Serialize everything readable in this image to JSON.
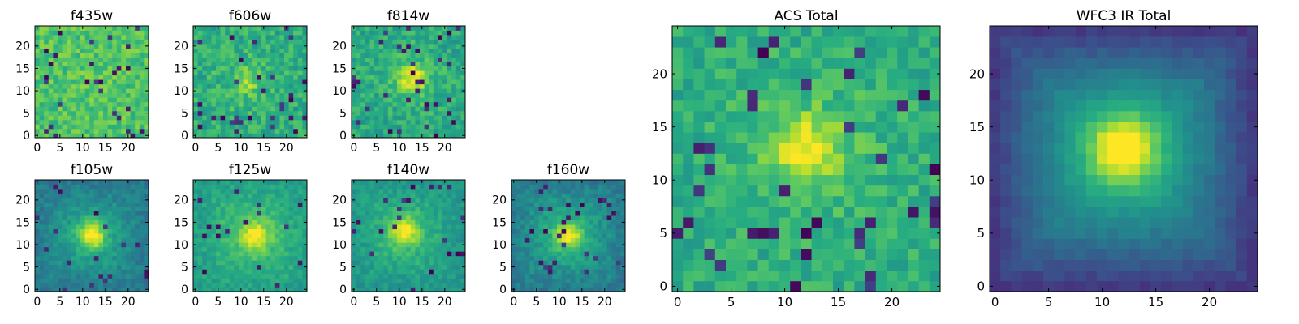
{
  "chart_data": [
    {
      "type": "heatmap",
      "title": "f435w",
      "xlim": [
        0,
        24
      ],
      "ylim": [
        0,
        24
      ],
      "xticks": [
        0,
        5,
        10,
        15,
        20
      ],
      "yticks": [
        0,
        5,
        10,
        15,
        20
      ],
      "peak": [
        12,
        12
      ],
      "core_strength": 0.0,
      "halo_strength": 0.02,
      "base": 0.72,
      "noise": 0.22,
      "dark_fraction": 0.06,
      "edge_darkening": 0.0
    },
    {
      "type": "heatmap",
      "title": "f606w",
      "xlim": [
        0,
        24
      ],
      "ylim": [
        0,
        24
      ],
      "xticks": [
        0,
        5,
        10,
        15,
        20
      ],
      "yticks": [
        0,
        5,
        10,
        15,
        20
      ],
      "peak": [
        11,
        12
      ],
      "core_strength": 0.18,
      "halo_strength": 0.06,
      "base": 0.62,
      "noise": 0.24,
      "dark_fraction": 0.05,
      "edge_darkening": 0.0
    },
    {
      "type": "heatmap",
      "title": "f814w",
      "xlim": [
        0,
        24
      ],
      "ylim": [
        0,
        24
      ],
      "xticks": [
        0,
        5,
        10,
        15,
        20
      ],
      "yticks": [
        0,
        5,
        10,
        15,
        20
      ],
      "peak": [
        13,
        13
      ],
      "core_strength": 0.32,
      "halo_strength": 0.1,
      "base": 0.6,
      "noise": 0.22,
      "dark_fraction": 0.05,
      "edge_darkening": 0.0
    },
    {
      "type": "heatmap",
      "title": "f105w",
      "xlim": [
        0,
        24
      ],
      "ylim": [
        0,
        24
      ],
      "xticks": [
        0,
        5,
        10,
        15,
        20
      ],
      "yticks": [
        0,
        5,
        10,
        15,
        20
      ],
      "peak": [
        12,
        12
      ],
      "core_strength": 0.42,
      "halo_strength": 0.14,
      "base": 0.48,
      "noise": 0.14,
      "dark_fraction": 0.035,
      "edge_darkening": 0.08
    },
    {
      "type": "heatmap",
      "title": "f125w",
      "xlim": [
        0,
        24
      ],
      "ylim": [
        0,
        24
      ],
      "xticks": [
        0,
        5,
        10,
        15,
        20
      ],
      "yticks": [
        0,
        5,
        10,
        15,
        20
      ],
      "peak": [
        13,
        12
      ],
      "core_strength": 0.32,
      "halo_strength": 0.12,
      "base": 0.62,
      "noise": 0.14,
      "dark_fraction": 0.03,
      "edge_darkening": 0.06
    },
    {
      "type": "heatmap",
      "title": "f140w",
      "xlim": [
        0,
        24
      ],
      "ylim": [
        0,
        24
      ],
      "xticks": [
        0,
        5,
        10,
        15,
        20
      ],
      "yticks": [
        0,
        5,
        10,
        15,
        20
      ],
      "peak": [
        11,
        13
      ],
      "core_strength": 0.34,
      "halo_strength": 0.12,
      "base": 0.58,
      "noise": 0.14,
      "dark_fraction": 0.035,
      "edge_darkening": 0.06
    },
    {
      "type": "heatmap",
      "title": "f160w",
      "xlim": [
        0,
        24
      ],
      "ylim": [
        0,
        24
      ],
      "xticks": [
        0,
        5,
        10,
        15,
        20
      ],
      "yticks": [
        0,
        5,
        10,
        15,
        20
      ],
      "peak": [
        12,
        12
      ],
      "core_strength": 0.38,
      "halo_strength": 0.12,
      "base": 0.52,
      "noise": 0.14,
      "dark_fraction": 0.035,
      "edge_darkening": 0.12
    },
    {
      "type": "heatmap",
      "title": "ACS Total",
      "xlim": [
        0,
        24
      ],
      "ylim": [
        0,
        24
      ],
      "xticks": [
        0,
        5,
        10,
        15,
        20
      ],
      "yticks": [
        0,
        5,
        10,
        15,
        20
      ],
      "peak": [
        12,
        13
      ],
      "core_strength": 0.3,
      "halo_strength": 0.1,
      "base": 0.62,
      "noise": 0.2,
      "dark_fraction": 0.05,
      "edge_darkening": 0.0
    },
    {
      "type": "heatmap",
      "title": "WFC3 IR Total",
      "xlim": [
        0,
        24
      ],
      "ylim": [
        0,
        24
      ],
      "xticks": [
        0,
        5,
        10,
        15,
        20
      ],
      "yticks": [
        0,
        5,
        10,
        15,
        20
      ],
      "peak": [
        12,
        13
      ],
      "core_strength": 0.5,
      "halo_strength": 0.2,
      "base": 0.46,
      "noise": 0.06,
      "dark_fraction": 0.0,
      "edge_darkening": 0.3
    }
  ],
  "colormap": [
    "#440154",
    "#472c7a",
    "#3b518b",
    "#2c718e",
    "#21908d",
    "#27ad81",
    "#5cc863",
    "#aadc32",
    "#fde725"
  ]
}
